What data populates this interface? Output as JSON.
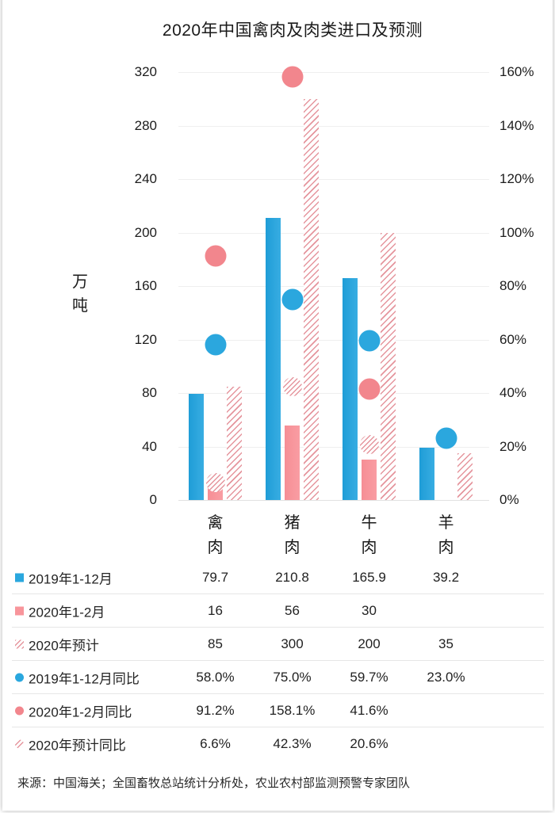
{
  "page": {
    "title": "2020年中国禽肉及肉类进口及预测",
    "source": "来源：中国海关；全国畜牧总站统计分析处，农业农村部监测预警专家团队"
  },
  "axes": {
    "left": {
      "title": "万吨",
      "tick_labels": [
        "0",
        "40",
        "80",
        "120",
        "160",
        "200",
        "240",
        "280",
        "320"
      ]
    },
    "right": {
      "tick_labels": [
        "0%",
        "20%",
        "40%",
        "60%",
        "80%",
        "100%",
        "120%",
        "140%",
        "160%"
      ]
    }
  },
  "chart_data": {
    "type": "bar",
    "subtype": "grouped-bars-with-scatter-overlay",
    "title": "2020年中国禽肉及肉类进口及预测",
    "categories": [
      "禽肉",
      "猪肉",
      "牛肉",
      "羊肉"
    ],
    "series": [
      {
        "key": "imports-2019",
        "name": "2019年1-12月",
        "kind": "bar",
        "style": "solid-blue",
        "axis": "left",
        "values": [
          79.7,
          210.8,
          165.9,
          39.2
        ]
      },
      {
        "key": "imports-2020-jan-feb",
        "name": "2020年1-2月",
        "kind": "bar",
        "style": "solid-pink",
        "axis": "left",
        "values": [
          16,
          56,
          30,
          null
        ]
      },
      {
        "key": "forecast-2020",
        "name": "2020年预计",
        "kind": "bar",
        "style": "hatched-pink",
        "axis": "left",
        "values": [
          85,
          300,
          200,
          35
        ]
      },
      {
        "key": "yoy-2019",
        "name": "2019年1-12月同比",
        "kind": "scatter",
        "style": "dot-blue",
        "axis": "right",
        "values": [
          58.0,
          75.0,
          59.7,
          23.0
        ]
      },
      {
        "key": "yoy-2020-jan-feb",
        "name": "2020年1-2月同比",
        "kind": "scatter",
        "style": "dot-pink",
        "axis": "right",
        "values": [
          91.2,
          158.1,
          41.6,
          null
        ]
      },
      {
        "key": "yoy-forecast-2020",
        "name": "2020年预计同比",
        "kind": "scatter",
        "style": "dot-hatched",
        "axis": "right",
        "values": [
          6.6,
          42.3,
          20.6,
          null
        ]
      }
    ],
    "ylabel_left": "万吨",
    "ylim_left": [
      0,
      320
    ],
    "ytick_step_left": 40,
    "ylim_right_percent": [
      0,
      160
    ],
    "ytick_step_right_percent": 20,
    "grid": true,
    "legend_position": "table-below"
  },
  "table": {
    "rows": [
      {
        "key": "imports-2019",
        "marker": "square-blue",
        "label": "2019年1-12月",
        "values": [
          "79.7",
          "210.8",
          "165.9",
          "39.2"
        ]
      },
      {
        "key": "imports-2020-jan-feb",
        "marker": "square-pink",
        "label": "2020年1-2月",
        "values": [
          "16",
          "56",
          "30",
          ""
        ]
      },
      {
        "key": "forecast-2020",
        "marker": "square-hatched",
        "label": "2020年预计",
        "values": [
          "85",
          "300",
          "200",
          "35"
        ]
      },
      {
        "key": "yoy-2019",
        "marker": "dot-blue",
        "label": "2019年1-12月同比",
        "values": [
          "58.0%",
          "75.0%",
          "59.7%",
          "23.0%"
        ]
      },
      {
        "key": "yoy-2020-jan-feb",
        "marker": "dot-pink",
        "label": "2020年1-2月同比",
        "values": [
          "91.2%",
          "158.1%",
          "41.6%",
          ""
        ]
      },
      {
        "key": "yoy-forecast-2020",
        "marker": "dot-hatched",
        "label": "2020年预计同比",
        "values": [
          "6.6%",
          "42.3%",
          "20.6%",
          ""
        ]
      }
    ]
  },
  "colors": {
    "bar_blue": "#2aa7de",
    "bar_pink": "#f8959b",
    "dot_blue": "#2ba7de",
    "dot_pink": "#f2868d",
    "hatch_pink": "#e5959d",
    "grid": "#efefef",
    "baseline": "#e2e2e2",
    "text": "#1c1c1c"
  }
}
